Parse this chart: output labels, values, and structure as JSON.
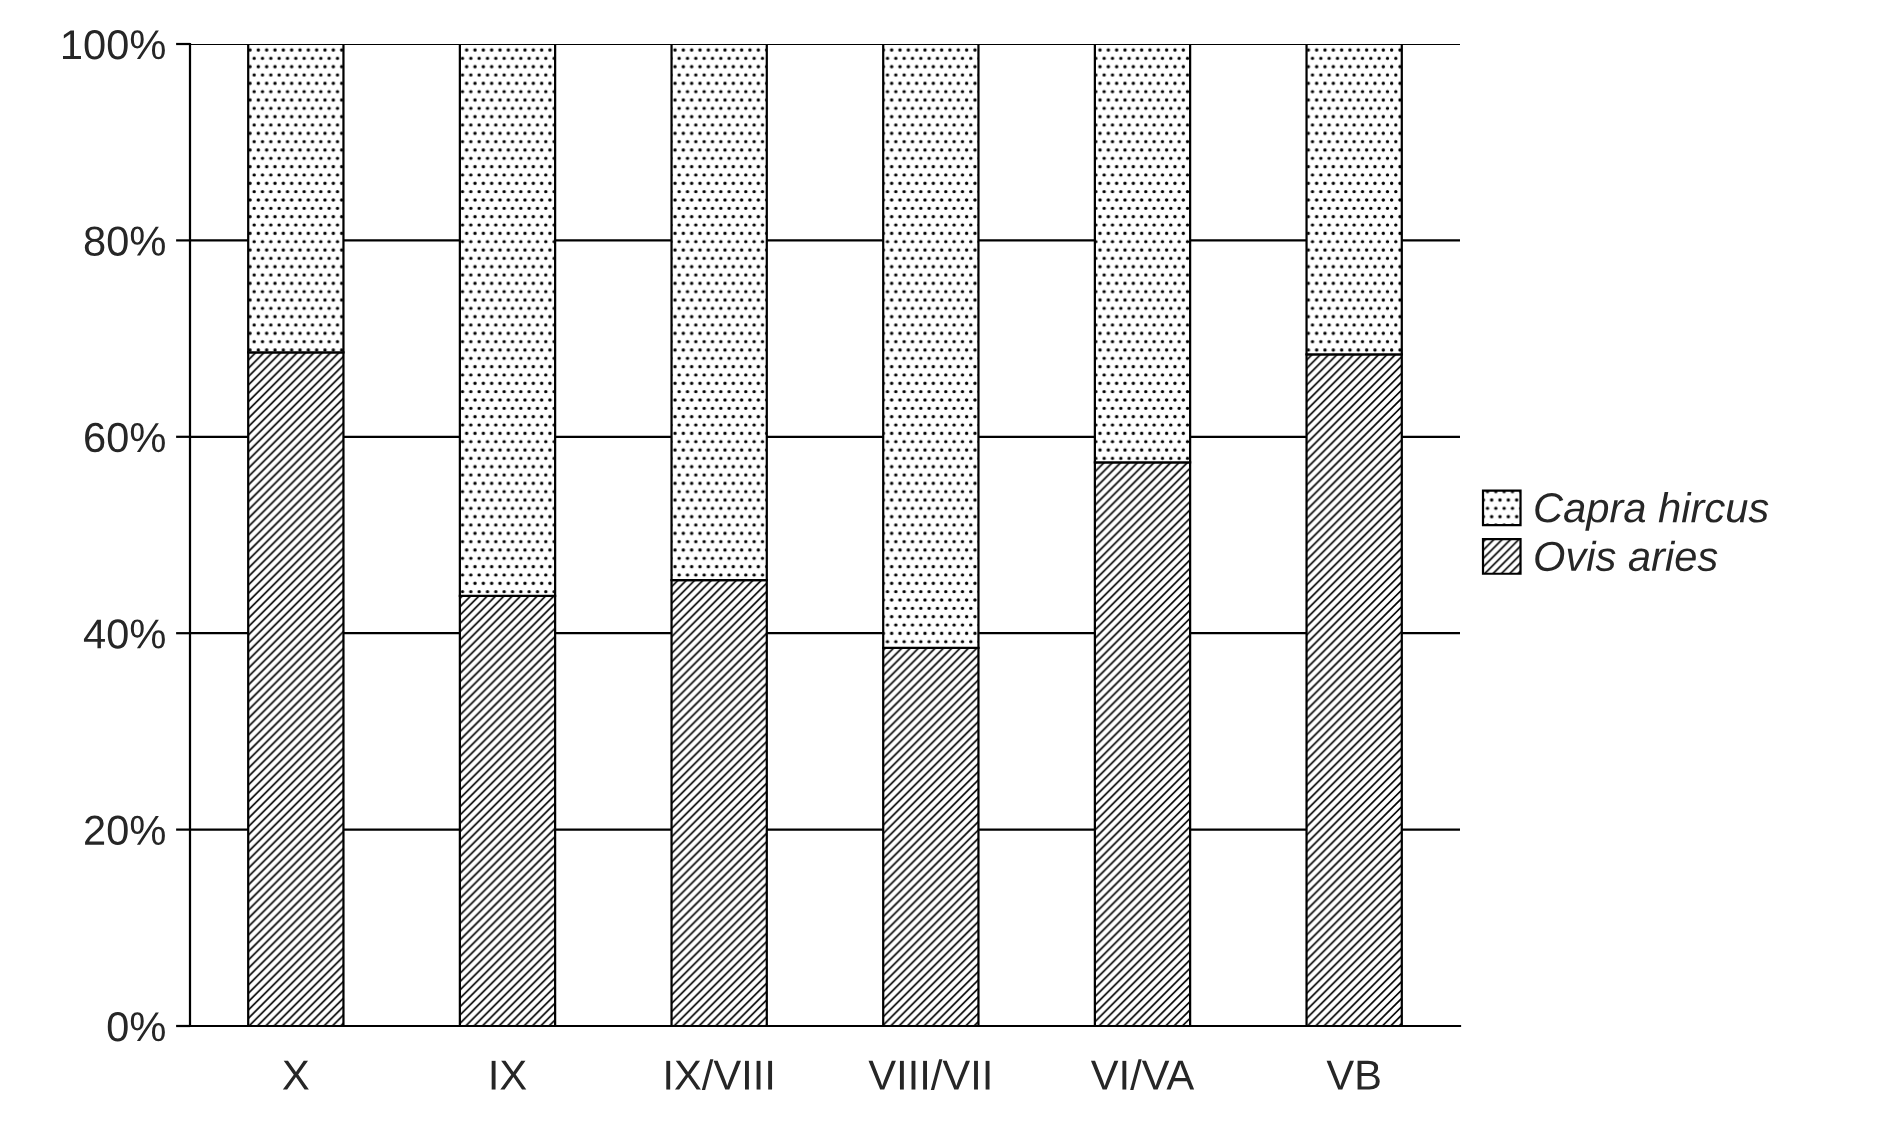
{
  "chart_data": {
    "type": "bar",
    "stacked": true,
    "categories": [
      "X",
      "IX",
      "IX/VIII",
      "VIII/VII",
      "VI/VA",
      "VB"
    ],
    "series": [
      {
        "name": "Ovis aries",
        "color": "#000000",
        "values": [
          68.6,
          43.8,
          45.4,
          38.5,
          57.4,
          68.4
        ]
      },
      {
        "name": "Capra hircus",
        "color": "#000000",
        "values": [
          31.4,
          56.2,
          54.6,
          61.5,
          42.6,
          31.6
        ]
      }
    ],
    "ylim": [
      0,
      100
    ],
    "yticks": [
      {
        "value": 0,
        "label": "0%"
      },
      {
        "value": 20,
        "label": "20%"
      },
      {
        "value": 40,
        "label": "40%"
      },
      {
        "value": 60,
        "label": "60%"
      },
      {
        "value": 80,
        "label": "80%"
      },
      {
        "value": 100,
        "label": "100%"
      }
    ],
    "grid": "y",
    "legend": "right"
  }
}
